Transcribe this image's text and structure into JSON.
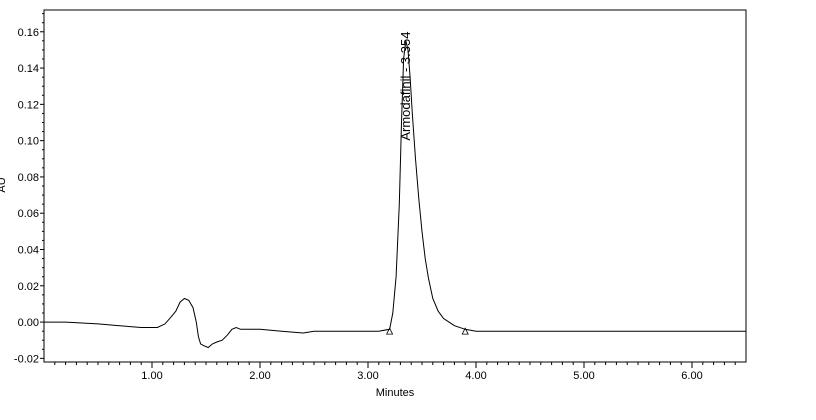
{
  "chart_data": {
    "type": "line",
    "title": "",
    "xlabel": "Minutes",
    "ylabel": "AU",
    "xlim": [
      0.0,
      6.5
    ],
    "ylim": [
      -0.022,
      0.172
    ],
    "x_ticks": [
      1.0,
      2.0,
      3.0,
      4.0,
      5.0,
      6.0
    ],
    "x_tick_labels": [
      "1.00",
      "2.00",
      "3.00",
      "4.00",
      "5.00",
      "6.00"
    ],
    "y_ticks": [
      -0.02,
      0.0,
      0.02,
      0.04,
      0.06,
      0.08,
      0.1,
      0.12,
      0.14,
      0.16
    ],
    "y_tick_labels": [
      "-0.02",
      "0.00",
      "0.02",
      "0.04",
      "0.06",
      "0.08",
      "0.10",
      "0.12",
      "0.14",
      "0.16"
    ],
    "grid": false,
    "legend": "none",
    "line_color": "#000000",
    "series": [
      {
        "x": [
          0.0,
          0.2,
          0.5,
          0.7,
          0.9,
          1.05,
          1.12,
          1.18,
          1.22,
          1.26,
          1.3,
          1.34,
          1.38,
          1.41,
          1.43,
          1.45,
          1.48,
          1.52,
          1.56,
          1.6,
          1.65,
          1.7,
          1.74,
          1.78,
          1.82,
          1.86,
          1.9,
          2.0,
          2.2,
          2.4,
          2.5,
          2.6,
          2.8,
          3.0,
          3.1,
          3.2,
          3.23,
          3.26,
          3.29,
          3.31,
          3.33,
          3.35,
          3.37,
          3.39,
          3.41,
          3.44,
          3.47,
          3.5,
          3.53,
          3.56,
          3.6,
          3.65,
          3.7,
          3.75,
          3.8,
          3.9,
          4.0,
          4.5,
          5.0,
          5.5,
          6.0,
          6.5
        ],
        "y": [
          0.0,
          0.0,
          -0.001,
          -0.002,
          -0.003,
          -0.003,
          -0.001,
          0.003,
          0.006,
          0.011,
          0.013,
          0.012,
          0.008,
          0.0,
          -0.008,
          -0.012,
          -0.013,
          -0.014,
          -0.012,
          -0.011,
          -0.01,
          -0.007,
          -0.004,
          -0.003,
          -0.004,
          -0.004,
          -0.004,
          -0.004,
          -0.005,
          -0.006,
          -0.005,
          -0.005,
          -0.005,
          -0.005,
          -0.005,
          -0.004,
          0.005,
          0.025,
          0.065,
          0.11,
          0.145,
          0.155,
          0.15,
          0.135,
          0.115,
          0.09,
          0.068,
          0.05,
          0.035,
          0.024,
          0.013,
          0.006,
          0.002,
          0.0,
          -0.002,
          -0.004,
          -0.005,
          -0.005,
          -0.005,
          -0.005,
          -0.005,
          -0.005
        ]
      }
    ],
    "annotations": [
      {
        "text": "Armodafinil - 3.354",
        "x": 3.354,
        "y": 0.1,
        "rotation": -90
      }
    ],
    "markers": [
      {
        "shape": "triangle",
        "x": 3.2,
        "y": -0.005
      },
      {
        "shape": "triangle",
        "x": 3.9,
        "y": -0.005
      }
    ]
  }
}
